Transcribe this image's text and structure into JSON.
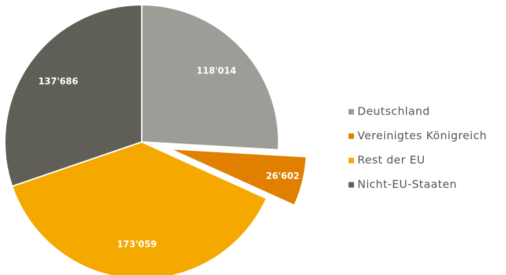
{
  "chart_data": {
    "type": "pie",
    "categories": [
      "Deutschland",
      "Vereinigtes Königreich",
      "Rest der EU",
      "Nicht-EU-Staaten"
    ],
    "values": [
      118014,
      26602,
      173059,
      137686
    ],
    "value_labels": [
      "118'014",
      "26'602",
      "173'059",
      "137'686"
    ],
    "colors": [
      "#9d9d97",
      "#e07f00",
      "#f5a800",
      "#5f5f58"
    ],
    "exploded_category": "Vereinigtes Königreich",
    "legend": "right"
  }
}
